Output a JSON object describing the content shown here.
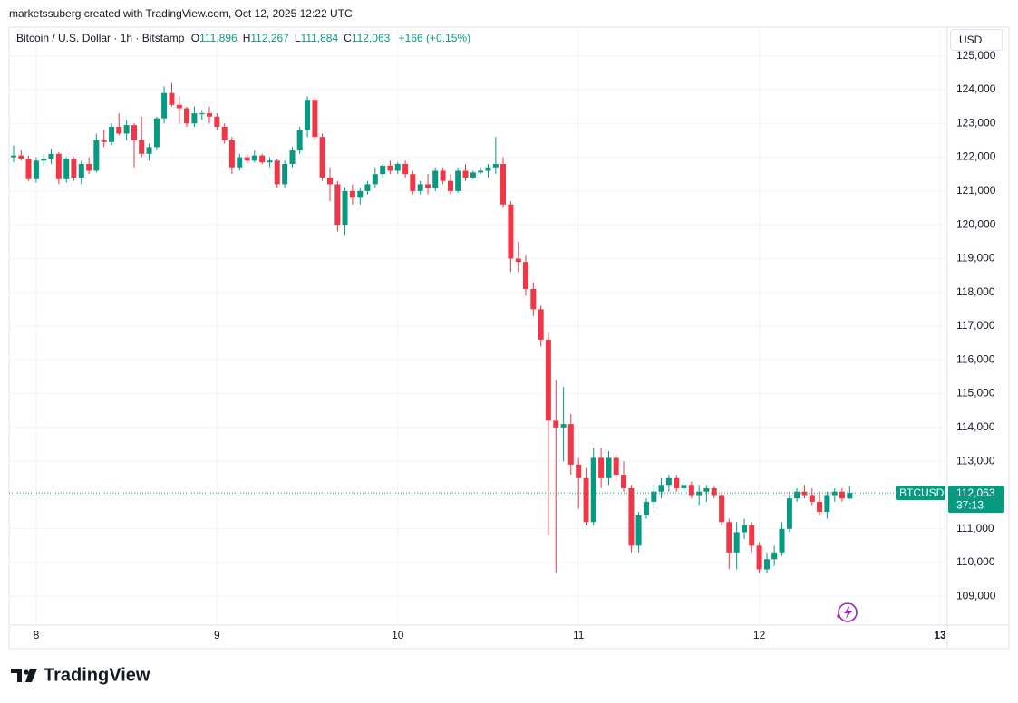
{
  "header": {
    "attribution": "marketssuberg created with TradingView.com, Oct 12, 2025 12:22 UTC",
    "symbol": "Bitcoin / U.S. Dollar · 1h · Bitstamp",
    "ohlc": [
      {
        "key": "O",
        "value": "111,896"
      },
      {
        "key": "H",
        "value": "112,267"
      },
      {
        "key": "L",
        "value": "111,884"
      },
      {
        "key": "C",
        "value": "112,063"
      }
    ],
    "change": "+166 (+0.15%)",
    "currency": "USD"
  },
  "logo": "TradingView",
  "chart_data": {
    "type": "candlestick",
    "up_color": "#089981",
    "down_color": "#f23645",
    "grid": true,
    "xlim": [
      7.85,
      13.04
    ],
    "xticks": [
      8,
      9,
      10,
      11,
      12,
      13
    ],
    "ylim": [
      108150,
      125850
    ],
    "yticks": [
      {
        "value": 109000,
        "label": "109,000"
      },
      {
        "value": 110000,
        "label": "110,000"
      },
      {
        "value": 111000,
        "label": "111,000"
      },
      {
        "value": 112000,
        "label": "112,000"
      },
      {
        "value": 113000,
        "label": "113,000"
      },
      {
        "value": 114000,
        "label": "114,000"
      },
      {
        "value": 115000,
        "label": "115,000"
      },
      {
        "value": 116000,
        "label": "116,000"
      },
      {
        "value": 117000,
        "label": "117,000"
      },
      {
        "value": 118000,
        "label": "118,000"
      },
      {
        "value": 119000,
        "label": "119,000"
      },
      {
        "value": 120000,
        "label": "120,000"
      },
      {
        "value": 121000,
        "label": "121,000"
      },
      {
        "value": 122000,
        "label": "122,000"
      },
      {
        "value": 123000,
        "label": "123,000"
      },
      {
        "value": 124000,
        "label": "124,000"
      },
      {
        "value": 125000,
        "label": "125,000"
      }
    ],
    "last_price": {
      "value": 112063,
      "label": "112,063"
    },
    "symbol_tag": "BTCUSD",
    "countdown": "37:13",
    "x": [
      7.875,
      7.917,
      7.958,
      8,
      8.042,
      8.083,
      8.125,
      8.167,
      8.208,
      8.25,
      8.292,
      8.333,
      8.375,
      8.417,
      8.458,
      8.5,
      8.542,
      8.583,
      8.625,
      8.667,
      8.708,
      8.75,
      8.792,
      8.833,
      8.875,
      8.917,
      8.958,
      9,
      9.042,
      9.083,
      9.125,
      9.167,
      9.208,
      9.25,
      9.292,
      9.333,
      9.375,
      9.417,
      9.458,
      9.5,
      9.542,
      9.583,
      9.625,
      9.667,
      9.708,
      9.75,
      9.792,
      9.833,
      9.875,
      9.917,
      9.958,
      10,
      10.042,
      10.083,
      10.125,
      10.167,
      10.208,
      10.25,
      10.292,
      10.333,
      10.375,
      10.417,
      10.458,
      10.5,
      10.542,
      10.583,
      10.625,
      10.667,
      10.708,
      10.75,
      10.792,
      10.833,
      10.875,
      10.917,
      10.958,
      11,
      11.042,
      11.083,
      11.125,
      11.167,
      11.208,
      11.25,
      11.292,
      11.333,
      11.375,
      11.417,
      11.458,
      11.5,
      11.542,
      11.583,
      11.625,
      11.667,
      11.708,
      11.75,
      11.792,
      11.833,
      11.875,
      11.917,
      11.958,
      12,
      12.042,
      12.083,
      12.125,
      12.167,
      12.208,
      12.25,
      12.292,
      12.333,
      12.375,
      12.417,
      12.458,
      12.5
    ],
    "open": [
      122000,
      122050,
      121950,
      121350,
      121900,
      121950,
      122100,
      121350,
      121950,
      121400,
      121800,
      121600,
      122500,
      122450,
      122900,
      122700,
      122950,
      122500,
      122100,
      122300,
      123150,
      123900,
      123550,
      123450,
      123000,
      123300,
      123300,
      123200,
      122900,
      122500,
      121700,
      122000,
      121900,
      122050,
      121850,
      121900,
      121200,
      121800,
      122200,
      122800,
      123700,
      122600,
      121400,
      121200,
      120000,
      121000,
      120800,
      121000,
      121200,
      121500,
      121750,
      121600,
      121800,
      121500,
      121000,
      121200,
      121100,
      121600,
      121300,
      121000,
      121600,
      121400,
      121550,
      121600,
      121700,
      121800,
      120600,
      119000,
      118900,
      118100,
      117500,
      116600,
      114200,
      114000,
      114100,
      112900,
      112500,
      111200,
      113100,
      112500,
      113100,
      112600,
      112200,
      110500,
      111400,
      111800,
      112100,
      112300,
      112500,
      112200,
      112300,
      112000,
      112100,
      112200,
      112000,
      111200,
      110300,
      110900,
      111100,
      110500,
      109800,
      110100,
      110300,
      111000,
      111900,
      112100,
      112000,
      111800,
      111500,
      112000,
      112100,
      111896
    ],
    "high": [
      122350,
      122200,
      122050,
      122000,
      122100,
      122250,
      122150,
      122000,
      122000,
      121900,
      122000,
      122700,
      122800,
      123000,
      123300,
      123100,
      123000,
      123200,
      122400,
      123200,
      124100,
      124200,
      123800,
      123500,
      123500,
      123400,
      123500,
      123300,
      123000,
      122600,
      122100,
      122100,
      122200,
      122100,
      122000,
      121950,
      121900,
      122300,
      122900,
      123800,
      123800,
      122700,
      121700,
      121300,
      121100,
      121200,
      121100,
      121300,
      121700,
      121800,
      121900,
      121850,
      121900,
      121600,
      121300,
      121500,
      121700,
      121700,
      121500,
      121700,
      121800,
      121600,
      121700,
      121800,
      122600,
      122000,
      120700,
      119500,
      119100,
      118300,
      117600,
      116800,
      115400,
      115200,
      114400,
      113100,
      112800,
      113400,
      113400,
      113300,
      113200,
      113000,
      112300,
      111500,
      111900,
      112300,
      112500,
      112600,
      112600,
      112500,
      112400,
      112300,
      112300,
      112250,
      112100,
      111300,
      111200,
      111300,
      111200,
      110600,
      110300,
      110500,
      111200,
      112100,
      112200,
      112300,
      112200,
      112100,
      112100,
      112200,
      112200,
      112267
    ],
    "low": [
      121850,
      121900,
      121300,
      121250,
      121750,
      121800,
      121200,
      121250,
      121300,
      121200,
      121500,
      121550,
      122300,
      122350,
      122650,
      122500,
      121700,
      122000,
      121900,
      122200,
      123000,
      123500,
      123000,
      122900,
      122900,
      123100,
      123000,
      122800,
      122400,
      121500,
      121600,
      121800,
      121850,
      121800,
      121700,
      121100,
      121100,
      121700,
      122100,
      122600,
      122500,
      121300,
      120700,
      119800,
      119700,
      120600,
      120600,
      120900,
      121100,
      121400,
      121500,
      121500,
      121400,
      120900,
      120900,
      120900,
      121000,
      121200,
      120900,
      120950,
      121300,
      121350,
      121500,
      121400,
      121500,
      120500,
      118600,
      118600,
      117900,
      117300,
      116400,
      110800,
      109700,
      113000,
      112600,
      111600,
      111100,
      111100,
      112200,
      112300,
      112400,
      112100,
      110300,
      110300,
      111300,
      111600,
      111900,
      112100,
      112100,
      112000,
      111900,
      111700,
      111800,
      111900,
      111100,
      109800,
      109800,
      110700,
      110300,
      109700,
      109700,
      109900,
      110200,
      110900,
      111800,
      111900,
      111700,
      111400,
      111300,
      111800,
      111800,
      111884
    ],
    "close": [
      122050,
      121950,
      121350,
      121900,
      121950,
      122100,
      121350,
      121950,
      121400,
      121800,
      121600,
      122500,
      122450,
      122900,
      122700,
      122950,
      122500,
      122100,
      122300,
      123150,
      123900,
      123550,
      123450,
      123000,
      123300,
      123300,
      123200,
      122900,
      122500,
      121700,
      122000,
      121900,
      122050,
      121850,
      121900,
      121200,
      121800,
      122200,
      122800,
      123700,
      122600,
      121400,
      121200,
      120000,
      121000,
      120800,
      121000,
      121200,
      121500,
      121750,
      121600,
      121800,
      121500,
      121000,
      121200,
      121100,
      121600,
      121300,
      121000,
      121600,
      121400,
      121550,
      121600,
      121700,
      121800,
      120600,
      119000,
      118900,
      118100,
      117500,
      116600,
      114200,
      114000,
      114100,
      112900,
      112500,
      111200,
      113100,
      112500,
      113100,
      112600,
      112200,
      110500,
      111400,
      111800,
      112100,
      112300,
      112500,
      112200,
      112300,
      112000,
      112100,
      112200,
      112000,
      111200,
      110300,
      110900,
      111100,
      110500,
      109800,
      110100,
      110300,
      111000,
      111900,
      112100,
      112000,
      111800,
      111500,
      112000,
      112100,
      111900,
      112063
    ]
  }
}
